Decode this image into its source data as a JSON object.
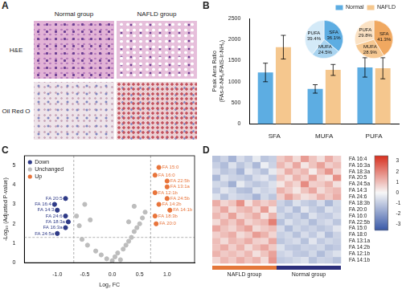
{
  "panel_a": {
    "panel_label": "A",
    "columns": [
      "Normal group",
      "NAFLD group"
    ],
    "rows": [
      "H&E",
      "Oil Red O"
    ]
  },
  "chart_data": [
    {
      "panel_label": "B",
      "type": "bar",
      "categories": [
        "SFA",
        "MUFA",
        "PUFA"
      ],
      "series": [
        {
          "name": "Normal",
          "color": "#5DADE2",
          "values": [
            1220,
            830,
            1340
          ],
          "errors": [
            220,
            100,
            230
          ]
        },
        {
          "name": "NAFLD",
          "color": "#F5C78E",
          "values": [
            1820,
            1280,
            1320
          ],
          "errors": [
            280,
            130,
            250
          ]
        }
      ],
      "y_label": [
        "Peak Aera Ratio",
        "(FAs-Ir-NH₂/FAIS-Ir-NH₂)"
      ],
      "ylim": [
        0,
        2500
      ],
      "yticks": [
        0,
        500,
        1000,
        1500,
        2000,
        2500
      ],
      "grid": false,
      "legend": "top-right",
      "insets": [
        {
          "type": "pie",
          "categories": [
            "SFA",
            "MUFA",
            "PUFA"
          ],
          "values": [
            36.1,
            24.5,
            39.4
          ],
          "value_labels": [
            "36.1%",
            "24.5%",
            "39.4%"
          ],
          "colors": [
            "#5DADE2",
            "#A9D4F0",
            "#D4EAF8"
          ],
          "data_labels": true
        },
        {
          "type": "pie",
          "categories": [
            "SFA",
            "MUFA",
            "PUFA"
          ],
          "values": [
            41.3,
            28.9,
            29.8
          ],
          "value_labels": [
            "41.3%",
            "28.9%",
            "29.8%"
          ],
          "colors": [
            "#F0A860",
            "#F6C892",
            "#FBE2C4"
          ],
          "data_labels": true
        }
      ]
    },
    {
      "panel_label": "C",
      "type": "scatter",
      "x_label": "Log₂ FC",
      "y_label": "-Log₁₀ (Adjusted P-value)",
      "xlim": [
        -1.6,
        1.5
      ],
      "xticks": [
        {
          "value": -1,
          "label": "-1.0"
        },
        {
          "value": -0.5,
          "label": "-0.5"
        },
        {
          "value": 0,
          "label": "0.0"
        },
        {
          "value": 0.5,
          "label": "0.5"
        },
        {
          "value": 1,
          "label": "1.0"
        }
      ],
      "ylim": [
        0,
        5.5
      ],
      "yticks": [
        0,
        1,
        2,
        3,
        4,
        5
      ],
      "grid": false,
      "legend": "top-left",
      "marker": "circle",
      "threshold_lines": {
        "x": [
          -0.7,
          0.7
        ],
        "y": [
          1.3
        ]
      },
      "series": [
        {
          "name": "Down",
          "color": "#2E3A87",
          "x": [
            -1.05,
            -0.85,
            -1.0,
            -0.85,
            -0.8,
            -0.85,
            -1.0
          ],
          "y": [
            3.0,
            3.3,
            2.7,
            2.4,
            2.1,
            1.8,
            1.5
          ],
          "labels": [
            "FA 16:4",
            "FA 20:5",
            "FA 14:3",
            "FA 24:6",
            "FA 18:3a",
            "FA 16:3a",
            "FA 24:5a"
          ]
        },
        {
          "name": "Unchanged",
          "color": "#BDBDBD",
          "x": [
            -0.65,
            -0.6,
            -0.55,
            -0.5,
            -0.45,
            -0.4,
            -0.3,
            -0.2,
            -0.1,
            0.0,
            0.05,
            0.1,
            0.15,
            0.2,
            0.25,
            0.3,
            0.35,
            0.4,
            0.45,
            0.5,
            0.55,
            0.6,
            0.3,
            0.4
          ],
          "y": [
            2.4,
            1.9,
            1.2,
            3.0,
            0.9,
            2.2,
            0.6,
            0.4,
            0.2,
            0.1,
            0.3,
            0.5,
            0.15,
            0.7,
            0.9,
            1.1,
            1.3,
            1.6,
            1.8,
            2.0,
            2.3,
            2.6,
            2.1,
            2.9
          ]
        },
        {
          "name": "Up",
          "color": "#E8743B",
          "x": [
            0.85,
            0.78,
            1.0,
            1.0,
            0.78,
            1.0,
            0.85,
            1.05,
            0.78,
            0.8
          ],
          "y": [
            4.9,
            4.5,
            4.2,
            3.9,
            3.6,
            3.3,
            3.0,
            2.7,
            2.4,
            2.0
          ],
          "labels": [
            "FA 15:0",
            "FA 16:0",
            "FA 22:5b",
            "FA 13:1a",
            "FA 12:1b",
            "FA 24:5b",
            "FA 14:2b",
            "FA 14:1b",
            "FA 18:3b",
            "FA 20:0"
          ]
        }
      ]
    },
    {
      "panel_label": "D",
      "type": "heatmap",
      "tick_labels": "y",
      "rows": [
        "FA 16:4",
        "FA 16:3a",
        "FA 18:3a",
        "FA 20:5",
        "FA 24:5a",
        "FA 14:3",
        "FA 24:6",
        "FA 18:3b",
        "FA 20:0",
        "FA 16:0",
        "FA 22:5b",
        "FA 15:0",
        "FA 18:0",
        "FA 13:1a",
        "FA 14:2b",
        "FA 12:1b",
        "FA 14:1b"
      ],
      "column_groups": [
        "NAFLD group",
        "NAFLD group",
        "NAFLD group",
        "NAFLD group",
        "NAFLD group",
        "NAFLD group",
        "NAFLD group",
        "NAFLD group",
        "Normal group",
        "Normal group",
        "Normal group",
        "Normal group",
        "Normal group",
        "Normal group",
        "Normal group",
        "Normal group"
      ],
      "group_colors": {
        "NAFLD group": "#E4773A",
        "Normal group": "#2C2F7C"
      },
      "cells": [
        [
          -1.2,
          -0.8,
          -1.5,
          -0.6,
          -1.0,
          -0.3,
          -1.1,
          -0.9,
          0.8,
          1.2,
          0.5,
          1.6,
          0.9,
          0.4,
          1.3,
          0.7
        ],
        [
          -0.9,
          -1.3,
          -0.5,
          -1.1,
          -0.7,
          -1.4,
          -0.2,
          -0.8,
          1.1,
          0.6,
          1.4,
          0.3,
          0.9,
          1.5,
          0.7,
          1.0
        ],
        [
          -0.6,
          -1.1,
          -0.9,
          -1.5,
          -0.4,
          -0.8,
          -1.2,
          -0.3,
          0.5,
          1.3,
          0.8,
          1.1,
          0.2,
          1.0,
          1.7,
          0.6
        ],
        [
          -1.4,
          -0.5,
          -0.8,
          -0.9,
          -1.2,
          -0.6,
          -0.4,
          -1.0,
          0.9,
          0.4,
          1.2,
          0.7,
          1.5,
          0.6,
          0.3,
          1.8
        ],
        [
          -0.7,
          -0.9,
          -1.6,
          -0.3,
          -0.8,
          -1.1,
          -0.9,
          -0.5,
          0.3,
          1.0,
          0.6,
          1.9,
          0.7,
          0.8,
          1.2,
          0.4
        ],
        [
          -1.0,
          -0.4,
          -0.7,
          -1.2,
          -1.3,
          -0.5,
          -0.8,
          -0.6,
          1.2,
          0.8,
          0.3,
          0.9,
          1.4,
          0.5,
          0.9,
          1.1
        ],
        [
          -0.5,
          -1.2,
          -0.6,
          -0.8,
          -0.9,
          -1.5,
          -0.7,
          -1.1,
          0.7,
          1.5,
          0.9,
          0.4,
          0.6,
          1.2,
          0.8,
          1.3
        ],
        [
          1.3,
          0.6,
          0.9,
          1.8,
          0.4,
          1.1,
          0.7,
          1.0,
          -0.8,
          -1.2,
          -0.5,
          -0.9,
          -1.1,
          -0.6,
          -1.4,
          -0.7
        ],
        [
          0.8,
          1.4,
          0.5,
          1.0,
          1.2,
          0.6,
          1.6,
          0.3,
          -1.0,
          -0.6,
          -1.3,
          -0.4,
          -0.9,
          -1.2,
          -0.5,
          -0.8
        ],
        [
          1.1,
          0.7,
          1.5,
          0.6,
          0.9,
          1.3,
          0.4,
          1.2,
          -0.7,
          -1.1,
          -0.8,
          -1.3,
          -0.5,
          -0.9,
          -1.0,
          -0.6
        ],
        [
          0.5,
          1.2,
          0.8,
          1.4,
          0.6,
          0.9,
          1.1,
          2.1,
          -1.2,
          -0.5,
          -0.9,
          -0.7,
          -1.3,
          -0.8,
          -0.6,
          -1.1
        ],
        [
          1.4,
          0.9,
          0.6,
          1.1,
          1.5,
          0.5,
          0.8,
          1.0,
          -0.6,
          -1.3,
          -0.7,
          -1.0,
          -0.8,
          -1.1,
          -0.9,
          -0.4
        ],
        [
          0.7,
          1.0,
          1.3,
          0.5,
          0.8,
          1.6,
          1.2,
          0.6,
          -0.9,
          -0.7,
          -1.2,
          -0.6,
          -1.0,
          -0.5,
          -1.3,
          -0.8
        ],
        [
          1.0,
          0.5,
          1.1,
          0.9,
          1.3,
          0.7,
          0.6,
          1.4,
          -1.1,
          -0.8,
          -0.6,
          -1.2,
          -0.4,
          -1.0,
          -0.7,
          -0.9
        ],
        [
          0.9,
          1.3,
          0.7,
          1.2,
          0.5,
          1.0,
          1.4,
          0.8,
          -0.5,
          -1.0,
          -1.1,
          -0.8,
          -0.9,
          -0.7,
          -1.2,
          -1.0
        ],
        [
          1.2,
          0.8,
          1.0,
          0.7,
          1.1,
          0.4,
          0.9,
          1.5,
          -0.8,
          -0.6,
          -1.0,
          -1.1,
          -0.7,
          -1.3,
          -0.8,
          -0.5
        ],
        [
          0.6,
          1.1,
          0.8,
          1.3,
          0.9,
          1.2,
          0.5,
          1.7,
          -1.0,
          -0.9,
          -0.7,
          -0.5,
          -1.2,
          -0.8,
          -0.9,
          -1.2
        ]
      ],
      "colorbar": {
        "range": [
          -3.5,
          3.5
        ],
        "ticks": [
          -3,
          -2,
          -1,
          0,
          1,
          2,
          3
        ],
        "colors": [
          "#3B5BA9",
          "#F7F7F7",
          "#D7301F"
        ]
      }
    }
  ]
}
